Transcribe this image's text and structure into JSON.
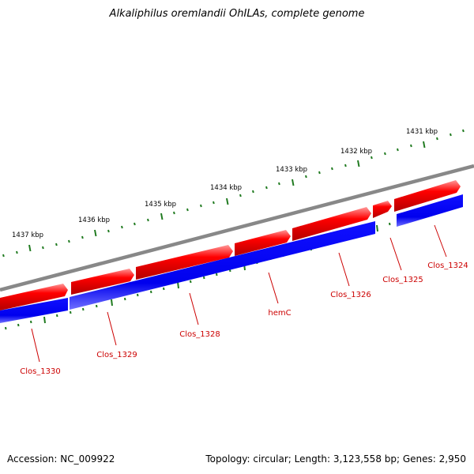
{
  "title": "Alkaliphilus oremlandii OhILAs, complete genome",
  "footer": {
    "accession": "Accession: NC_009922",
    "summary": "Topology: circular; Length: 3,123,558 bp; Genes: 2,950"
  },
  "colors": {
    "backbone": "#888888",
    "forward_strand": "#ff0000",
    "reverse_strand": "#0000ff",
    "ticks": "#1f7a1f",
    "gene_label": "#cc0000"
  },
  "axis_labels": [
    {
      "label": "1431 kbp",
      "kbp": 1431
    },
    {
      "label": "1432 kbp",
      "kbp": 1432
    },
    {
      "label": "1433 kbp",
      "kbp": 1433
    },
    {
      "label": "1434 kbp",
      "kbp": 1434
    },
    {
      "label": "1435 kbp",
      "kbp": 1435
    },
    {
      "label": "1436 kbp",
      "kbp": 1436
    },
    {
      "label": "1437 kbp",
      "kbp": 1437
    }
  ],
  "genes": [
    {
      "name": "Clos_1324"
    },
    {
      "name": "Clos_1325"
    },
    {
      "name": "Clos_1326"
    },
    {
      "name": "hemC"
    },
    {
      "name": "Clos_1328"
    },
    {
      "name": "Clos_1329"
    },
    {
      "name": "Clos_1330"
    }
  ]
}
